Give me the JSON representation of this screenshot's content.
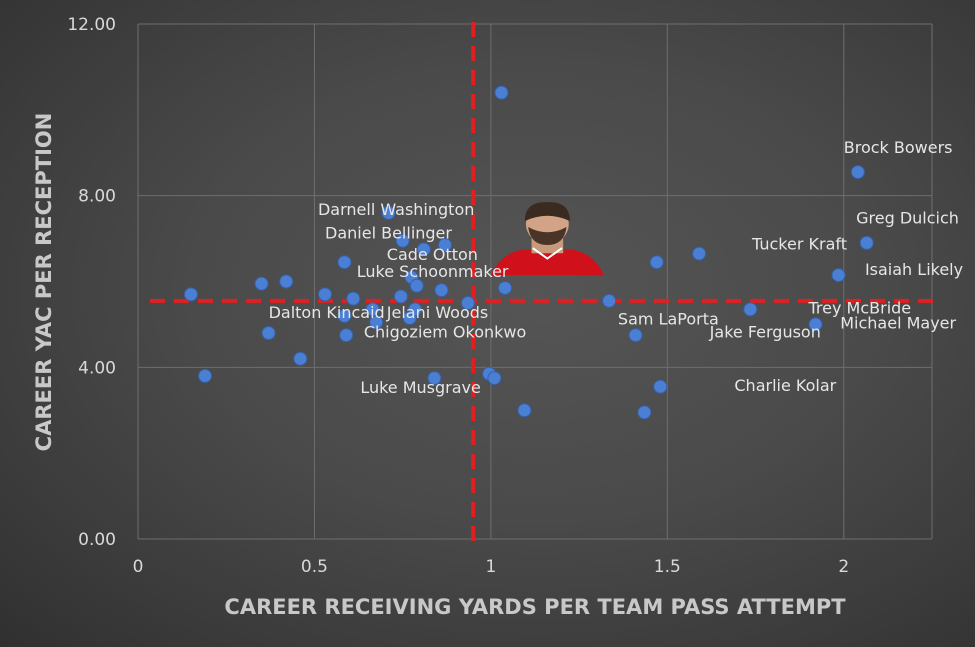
{
  "chart_data": {
    "type": "scatter",
    "xlabel": "CAREER RECEIVING YARDS PER TEAM PASS ATTEMPT",
    "ylabel": "CAREER YAC PER RECEPTION",
    "xlim": [
      0,
      2.25
    ],
    "ylim": [
      0,
      12
    ],
    "xticks": [
      "0",
      "0.5",
      "1",
      "1.5",
      "2"
    ],
    "yticks": [
      "0.00",
      "4.00",
      "8.00",
      "12.00"
    ],
    "grid": true,
    "legend": "none",
    "colors": {
      "marker": "#4a7fd4",
      "reference_line": "#e02020",
      "grid": "#6e6e6e"
    },
    "reference_lines": {
      "x": 0.95,
      "y": 5.55
    },
    "highlight_photo": {
      "x_range": [
        1.0,
        1.32
      ],
      "y_range": [
        6.15,
        7.9
      ],
      "description": "player headshot in red jersey"
    },
    "points": [
      {
        "x": 0.15,
        "y": 5.7,
        "label": ""
      },
      {
        "x": 0.19,
        "y": 3.8,
        "label": ""
      },
      {
        "x": 0.35,
        "y": 5.95,
        "label": ""
      },
      {
        "x": 0.37,
        "y": 4.8,
        "label": ""
      },
      {
        "x": 0.42,
        "y": 6.0,
        "label": ""
      },
      {
        "x": 0.46,
        "y": 4.2,
        "label": ""
      },
      {
        "x": 0.53,
        "y": 5.7,
        "label": ""
      },
      {
        "x": 0.585,
        "y": 6.45,
        "label": ""
      },
      {
        "x": 0.585,
        "y": 5.2,
        "label": ""
      },
      {
        "x": 0.59,
        "y": 4.75,
        "label": ""
      },
      {
        "x": 0.61,
        "y": 5.6,
        "label": ""
      },
      {
        "x": 0.665,
        "y": 5.35,
        "label": ""
      },
      {
        "x": 0.675,
        "y": 5.05,
        "label": ""
      },
      {
        "x": 0.71,
        "y": 7.6,
        "label": ""
      },
      {
        "x": 0.745,
        "y": 5.65,
        "label": ""
      },
      {
        "x": 0.75,
        "y": 6.95,
        "label": ""
      },
      {
        "x": 0.77,
        "y": 5.15,
        "label": ""
      },
      {
        "x": 0.775,
        "y": 6.1,
        "label": ""
      },
      {
        "x": 0.785,
        "y": 5.35,
        "label": ""
      },
      {
        "x": 0.79,
        "y": 5.9,
        "label": ""
      },
      {
        "x": 0.81,
        "y": 6.75,
        "label": ""
      },
      {
        "x": 0.84,
        "y": 3.75,
        "label": ""
      },
      {
        "x": 0.86,
        "y": 5.8,
        "label": ""
      },
      {
        "x": 0.87,
        "y": 6.85,
        "label": ""
      },
      {
        "x": 0.935,
        "y": 5.5,
        "label": ""
      },
      {
        "x": 0.995,
        "y": 3.85,
        "label": ""
      },
      {
        "x": 1.01,
        "y": 3.75,
        "label": ""
      },
      {
        "x": 1.03,
        "y": 10.4,
        "label": ""
      },
      {
        "x": 1.04,
        "y": 5.85,
        "label": ""
      },
      {
        "x": 1.095,
        "y": 3.0,
        "label": ""
      },
      {
        "x": 1.335,
        "y": 5.55,
        "label": ""
      },
      {
        "x": 1.41,
        "y": 4.75,
        "label": ""
      },
      {
        "x": 1.435,
        "y": 2.95,
        "label": ""
      },
      {
        "x": 1.47,
        "y": 6.45,
        "label": ""
      },
      {
        "x": 1.48,
        "y": 3.55,
        "label": ""
      },
      {
        "x": 1.59,
        "y": 6.65,
        "label": ""
      },
      {
        "x": 1.735,
        "y": 5.35,
        "label": ""
      },
      {
        "x": 1.92,
        "y": 5.0,
        "label": ""
      },
      {
        "x": 1.985,
        "y": 6.15,
        "label": ""
      },
      {
        "x": 2.04,
        "y": 8.55,
        "label": ""
      },
      {
        "x": 2.065,
        "y": 6.9,
        "label": ""
      }
    ],
    "annotations": [
      {
        "text": "Brock Bowers",
        "x": 2.0,
        "y": 9.0
      },
      {
        "text": "Greg Dulcich",
        "x": 2.035,
        "y": 7.35
      },
      {
        "text": "Isaiah Likely",
        "x": 2.06,
        "y": 6.15
      },
      {
        "text": "Michael Mayer",
        "x": 1.99,
        "y": 4.9
      },
      {
        "text": "Trey McBride",
        "x": 1.9,
        "y": 5.25
      },
      {
        "text": "Tucker Kraft",
        "x": 1.74,
        "y": 6.75
      },
      {
        "text": "Jake Ferguson",
        "x": 1.62,
        "y": 4.7
      },
      {
        "text": "Charlie Kolar",
        "x": 1.69,
        "y": 3.45
      },
      {
        "text": "Sam LaPorta",
        "x": 1.36,
        "y": 5.0
      },
      {
        "text": "Darnell Washington",
        "x": 0.51,
        "y": 7.55
      },
      {
        "text": "Daniel Bellinger",
        "x": 0.53,
        "y": 7.0
      },
      {
        "text": "Cade Otton",
        "x": 0.705,
        "y": 6.5
      },
      {
        "text": "Luke Schoonmaker",
        "x": 0.62,
        "y": 6.1
      },
      {
        "text": "Dalton Kincaid",
        "x": 0.37,
        "y": 5.15
      },
      {
        "text": "Jelani Woods",
        "x": 0.705,
        "y": 5.15
      },
      {
        "text": "Chigoziem Okonkwo",
        "x": 0.64,
        "y": 4.7
      },
      {
        "text": "Luke Musgrave",
        "x": 0.63,
        "y": 3.4
      }
    ]
  }
}
